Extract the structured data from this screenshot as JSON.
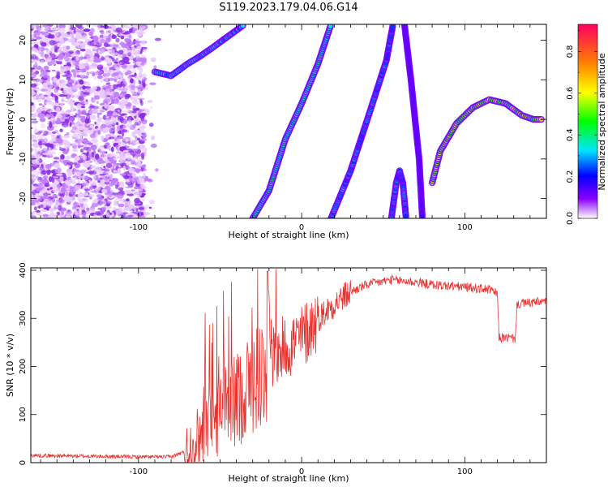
{
  "title": "S119.2023.179.04.06.G14",
  "chart_data": [
    {
      "type": "heatmap",
      "xlabel": "Height of straight line (km)",
      "ylabel": "Frequency (Hz)",
      "xlim": [
        -166,
        150
      ],
      "ylim": [
        -25,
        24
      ],
      "xticks": [
        -100,
        0,
        100
      ],
      "yticks": [
        -20,
        -10,
        0,
        10,
        20
      ],
      "colorbar": {
        "label": "Normalized spectral amplitude",
        "range": [
          0,
          0.93
        ],
        "ticks": [
          "0.0",
          "0.2",
          "0.4",
          "0.6",
          "0.8"
        ],
        "tick_values": [
          0.0,
          0.2,
          0.4,
          0.6,
          0.8
        ]
      },
      "traces": [
        {
          "points": [
            [
              -90,
              12
            ],
            [
              -80,
              11
            ],
            [
              -70,
              14
            ],
            [
              -62,
              16
            ],
            [
              -55,
              18
            ],
            [
              -45,
              21
            ],
            [
              -35,
              24
            ]
          ],
          "amp": 0.35
        },
        {
          "points": [
            [
              -30,
              -25
            ],
            [
              -20,
              -18
            ],
            [
              -10,
              -5
            ],
            [
              0,
              4
            ],
            [
              10,
              14
            ],
            [
              18,
              24
            ]
          ],
          "amp": 0.45
        },
        {
          "points": [
            [
              18,
              -25
            ],
            [
              30,
              -13
            ],
            [
              45,
              6
            ],
            [
              52,
              15
            ],
            [
              56,
              24
            ]
          ],
          "amp": 0.3
        },
        {
          "points": [
            [
              55,
              -25
            ],
            [
              58,
              -16
            ],
            [
              60,
              -13
            ],
            [
              62,
              -16
            ],
            [
              64,
              -25
            ]
          ],
          "amp": 0.3
        },
        {
          "points": [
            [
              63,
              24
            ],
            [
              67,
              10
            ],
            [
              72,
              -10
            ],
            [
              74,
              -25
            ]
          ],
          "amp": 0.1
        },
        {
          "points": [
            [
              80,
              -16
            ],
            [
              85,
              -8
            ],
            [
              95,
              -1
            ],
            [
              105,
              3
            ],
            [
              115,
              5
            ],
            [
              125,
              4
            ],
            [
              135,
              1
            ],
            [
              142,
              0
            ],
            [
              148,
              0
            ]
          ],
          "amp": 0.75
        }
      ]
    },
    {
      "type": "line",
      "xlabel": "Height of straight line (km)",
      "ylabel": "SNR (10 * v/v)",
      "xlim": [
        -166,
        150
      ],
      "ylim": [
        0,
        405
      ],
      "xticks": [
        -100,
        0,
        100
      ],
      "yticks": [
        0,
        100,
        200,
        300,
        400
      ],
      "color": "#e8322d",
      "profile": [
        [
          -166,
          15
        ],
        [
          -100,
          12
        ],
        [
          -80,
          12
        ],
        [
          -70,
          25
        ],
        [
          -62,
          60
        ],
        [
          -50,
          100
        ],
        [
          -40,
          130
        ],
        [
          -30,
          170
        ],
        [
          -20,
          210
        ],
        [
          -10,
          240
        ],
        [
          0,
          260
        ],
        [
          10,
          300
        ],
        [
          20,
          330
        ],
        [
          30,
          355
        ],
        [
          40,
          370
        ],
        [
          55,
          380
        ],
        [
          70,
          375
        ],
        [
          80,
          370
        ],
        [
          100,
          365
        ],
        [
          115,
          360
        ],
        [
          120,
          350
        ],
        [
          121,
          260
        ],
        [
          131,
          258
        ],
        [
          132,
          330
        ],
        [
          150,
          335
        ]
      ]
    }
  ]
}
